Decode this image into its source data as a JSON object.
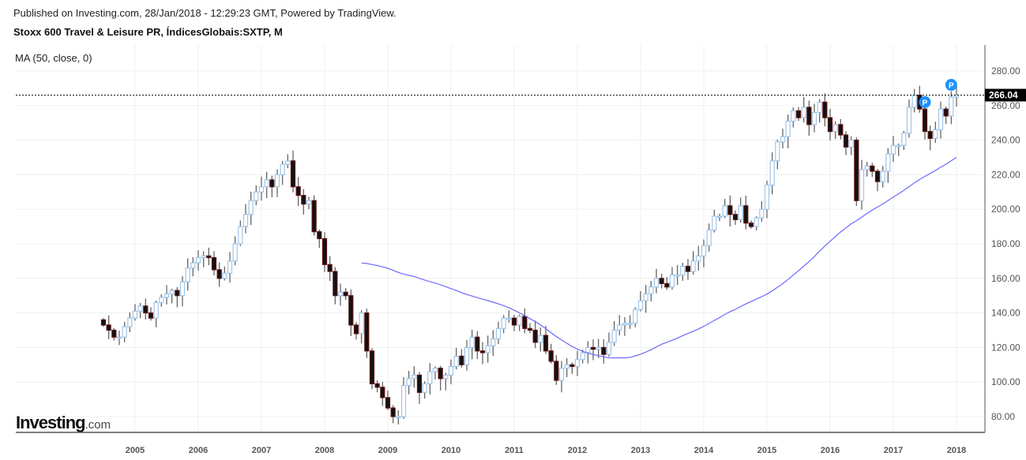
{
  "header": {
    "published": "Published on Investing.com, 28/Jan/2018 - 12:29:23 GMT, Powered by TradingView.",
    "title": "Stoxx 600 Travel & Leisure PR, ÍndicesGlobais:SXTP, M",
    "indicator": "MA (50, close, 0)"
  },
  "logo": {
    "main": "Investing",
    "suffix": ".com"
  },
  "colors": {
    "up": "#9fc5e8",
    "down_fill": "#111111",
    "down_border": "#5a1010",
    "wick": "#666666",
    "ma": "#6b6bff",
    "marker": "#1e90ff"
  },
  "chart_data": {
    "type": "candlestick",
    "title": "Stoxx 600 Travel & Leisure PR, ÍndicesGlobais:SXTP, M",
    "start": "2004-07",
    "interval": "month",
    "closes": [
      133,
      130,
      126,
      126,
      132,
      137,
      141,
      144,
      140,
      137,
      146,
      149,
      151,
      153,
      150,
      158,
      166,
      169,
      172,
      173,
      172,
      165,
      160,
      163,
      170,
      180,
      190,
      197,
      205,
      210,
      213,
      217,
      213,
      220,
      226,
      228,
      213,
      208,
      203,
      205,
      187,
      183,
      168,
      164,
      150,
      152,
      150,
      133,
      128,
      140,
      118,
      99,
      97,
      91,
      85,
      80,
      80,
      98,
      102,
      104,
      94,
      99,
      106,
      108,
      102,
      104,
      109,
      115,
      110,
      120,
      126,
      118,
      117,
      121,
      125,
      131,
      137,
      137,
      133,
      138,
      131,
      130,
      123,
      127,
      118,
      112,
      101,
      108,
      110,
      109,
      113,
      117,
      120,
      119,
      120,
      116,
      123,
      130,
      133,
      134,
      134,
      142,
      147,
      151,
      155,
      160,
      157,
      155,
      162,
      162,
      167,
      164,
      170,
      173,
      179,
      188,
      196,
      196,
      202,
      197,
      194,
      202,
      192,
      190,
      195,
      200,
      214,
      228,
      239,
      242,
      251,
      257,
      253,
      259,
      249,
      256,
      262,
      253,
      245,
      249,
      243,
      236,
      240,
      205,
      223,
      225,
      222,
      216,
      222,
      232,
      237,
      237,
      244,
      259,
      266,
      258,
      245,
      241,
      246,
      258,
      254,
      265,
      266.04
    ],
    "ma_period": 50,
    "last_price": "266.04",
    "yticks": [
      "80.00",
      "100.00",
      "120.00",
      "140.00",
      "160.00",
      "180.00",
      "200.00",
      "220.00",
      "240.00",
      "260.00",
      "280.00"
    ],
    "yvalues": [
      80,
      100,
      120,
      140,
      160,
      180,
      200,
      220,
      240,
      260,
      280
    ],
    "xticks": [
      "2005",
      "2006",
      "2007",
      "2008",
      "2009",
      "2010",
      "2011",
      "2012",
      "2013",
      "2014",
      "2015",
      "2016",
      "2017",
      "2018"
    ],
    "ylim": [
      72,
      286
    ],
    "markers": [
      {
        "label": "P",
        "month": "2017-07",
        "price": 262
      },
      {
        "label": "P",
        "month": "2017-12",
        "price": 272
      }
    ]
  }
}
